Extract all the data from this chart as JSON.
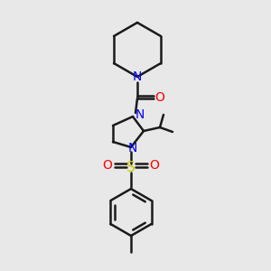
{
  "bg_color": "#e8e8e8",
  "bond_color": "#1a1a1a",
  "N_color": "#0000ff",
  "O_color": "#ff0000",
  "S_color": "#cccc00",
  "line_width": 1.8,
  "figsize": [
    3.0,
    3.0
  ],
  "dpi": 100,
  "xlim": [
    0,
    300
  ],
  "ylim": [
    0,
    300
  ]
}
